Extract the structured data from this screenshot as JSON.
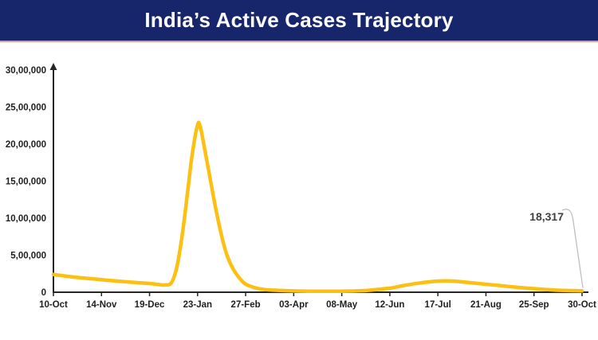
{
  "header": {
    "title": "India’s Active Cases Trajectory"
  },
  "colors": {
    "banner_background": "#17266b",
    "banner_underline": "#dba violation",
    "banner_underline_hex": "#dba08e",
    "title_text": "#ffffff",
    "series_line": "#FCC013",
    "axis": "#262626",
    "tick_label_text": "#1f1f1f",
    "annotation_text": "#404040",
    "annotation_leader": "#bfbfbf",
    "plot_background": "#ffffff"
  },
  "chart_data": {
    "type": "line",
    "title": "India’s Active Cases Trajectory",
    "xlabel": "",
    "ylabel": "",
    "grid": false,
    "legend": "none",
    "ylim": [
      0,
      3000000
    ],
    "y_tick_values": [
      0,
      500000,
      1000000,
      1500000,
      2000000,
      2500000,
      3000000
    ],
    "y_tick_labels": [
      "0",
      "5,00,000",
      "10,00,000",
      "15,00,000",
      "20,00,000",
      "25,00,000",
      "30,00,000"
    ],
    "x_range_days": [
      0,
      385
    ],
    "x_tick_days": [
      0,
      35,
      70,
      105,
      140,
      175,
      210,
      245,
      280,
      315,
      350,
      385
    ],
    "x_tick_labels": [
      "10-Oct",
      "14-Nov",
      "19-Dec",
      "23-Jan",
      "27-Feb",
      "03-Apr",
      "08-May",
      "12-Jun",
      "17-Jul",
      "21-Aug",
      "25-Sep",
      "30-Oct"
    ],
    "series": [
      {
        "name": "Active Cases",
        "points": [
          [
            0,
            240000
          ],
          [
            10,
            215000
          ],
          [
            20,
            195000
          ],
          [
            35,
            170000
          ],
          [
            50,
            145000
          ],
          [
            62,
            128000
          ],
          [
            70,
            118000
          ],
          [
            76,
            105000
          ],
          [
            81,
            98000
          ],
          [
            86,
            130000
          ],
          [
            90,
            350000
          ],
          [
            94,
            800000
          ],
          [
            98,
            1400000
          ],
          [
            101,
            1850000
          ],
          [
            105,
            2260000
          ],
          [
            107,
            2230000
          ],
          [
            110,
            1950000
          ],
          [
            114,
            1550000
          ],
          [
            118,
            1150000
          ],
          [
            122,
            800000
          ],
          [
            126,
            520000
          ],
          [
            131,
            310000
          ],
          [
            136,
            180000
          ],
          [
            140,
            110000
          ],
          [
            146,
            65000
          ],
          [
            152,
            40000
          ],
          [
            160,
            28000
          ],
          [
            170,
            20000
          ],
          [
            175,
            17000
          ],
          [
            185,
            14000
          ],
          [
            195,
            13000
          ],
          [
            210,
            14000
          ],
          [
            222,
            18000
          ],
          [
            232,
            30000
          ],
          [
            245,
            55000
          ],
          [
            255,
            90000
          ],
          [
            265,
            120000
          ],
          [
            275,
            142000
          ],
          [
            283,
            152000
          ],
          [
            292,
            150000
          ],
          [
            300,
            135000
          ],
          [
            315,
            108000
          ],
          [
            325,
            90000
          ],
          [
            337,
            68000
          ],
          [
            350,
            48000
          ],
          [
            362,
            32000
          ],
          [
            372,
            24000
          ],
          [
            385,
            18317
          ]
        ]
      }
    ],
    "annotation": {
      "label": "18,317",
      "value": 18317,
      "day": 385
    }
  }
}
